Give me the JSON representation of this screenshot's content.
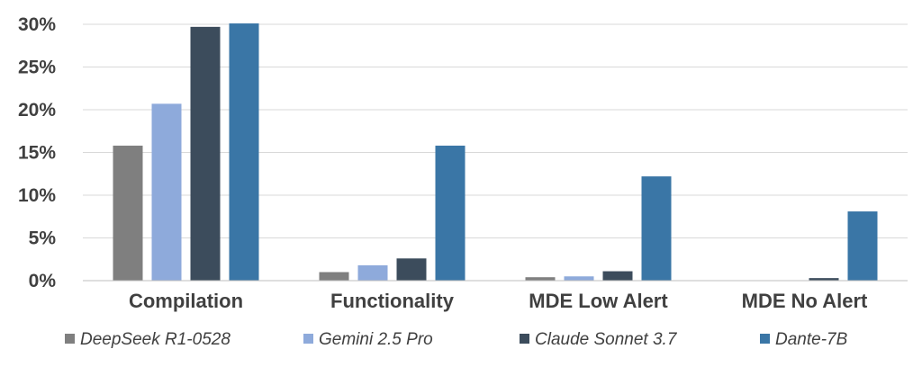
{
  "chart_data": {
    "type": "bar",
    "title": "",
    "xlabel": "",
    "ylabel": "",
    "categories": [
      "Compilation",
      "Functionality",
      "MDE Low Alert",
      "MDE No Alert"
    ],
    "series": [
      {
        "name": "DeepSeek R1-0528",
        "values": [
          15.8,
          1.0,
          0.4,
          0.0
        ],
        "color": "#7f7f7f"
      },
      {
        "name": "Gemini 2.5 Pro",
        "values": [
          20.7,
          1.8,
          0.5,
          0.0
        ],
        "color": "#8eaadb"
      },
      {
        "name": "Claude Sonnet 3.7",
        "values": [
          29.7,
          2.6,
          1.1,
          0.3
        ],
        "color": "#3c4c5c"
      },
      {
        "name": "Dante-7B",
        "values": [
          30.1,
          15.8,
          12.2,
          8.1
        ],
        "color": "#3a76a6"
      }
    ],
    "ylim": [
      0,
      30
    ],
    "yticks": [
      0,
      5,
      10,
      15,
      20,
      25,
      30
    ],
    "ytick_labels": [
      "0%",
      "5%",
      "10%",
      "15%",
      "20%",
      "25%",
      "30%"
    ],
    "grid": true,
    "legend_position": "bottom"
  }
}
